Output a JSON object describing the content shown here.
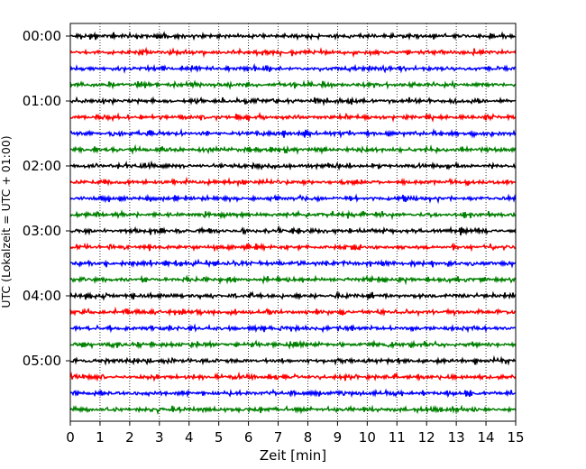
{
  "chart_data": {
    "type": "line",
    "title": "",
    "xlabel": "Zeit  [min]",
    "ylabel": "UTC (Lokalzeit = UTC + 01:00)",
    "xlim": [
      0,
      15
    ],
    "x_ticks": [
      "0",
      "1",
      "2",
      "3",
      "4",
      "5",
      "6",
      "7",
      "8",
      "9",
      "10",
      "11",
      "12",
      "13",
      "14",
      "15"
    ],
    "y_ticks": [
      "00:00",
      "01:00",
      "02:00",
      "03:00",
      "04:00",
      "05:00"
    ],
    "grid": "vertical dotted lines at each minute",
    "legend": "none",
    "trace_minutes": 15,
    "colors": [
      "#000000",
      "#ff0000",
      "#0000ff",
      "#008000"
    ],
    "traces": [
      {
        "start": "00:00",
        "color": "#000000"
      },
      {
        "start": "00:15",
        "color": "#ff0000"
      },
      {
        "start": "00:30",
        "color": "#0000ff"
      },
      {
        "start": "00:45",
        "color": "#008000"
      },
      {
        "start": "01:00",
        "color": "#000000"
      },
      {
        "start": "01:15",
        "color": "#ff0000"
      },
      {
        "start": "01:30",
        "color": "#0000ff"
      },
      {
        "start": "01:45",
        "color": "#008000"
      },
      {
        "start": "02:00",
        "color": "#000000"
      },
      {
        "start": "02:15",
        "color": "#ff0000"
      },
      {
        "start": "02:30",
        "color": "#0000ff"
      },
      {
        "start": "02:45",
        "color": "#008000"
      },
      {
        "start": "03:00",
        "color": "#000000"
      },
      {
        "start": "03:15",
        "color": "#ff0000"
      },
      {
        "start": "03:30",
        "color": "#0000ff"
      },
      {
        "start": "03:45",
        "color": "#008000"
      },
      {
        "start": "04:00",
        "color": "#000000"
      },
      {
        "start": "04:15",
        "color": "#ff0000"
      },
      {
        "start": "04:30",
        "color": "#0000ff"
      },
      {
        "start": "04:45",
        "color": "#008000"
      },
      {
        "start": "05:00",
        "color": "#000000"
      },
      {
        "start": "05:15",
        "color": "#ff0000"
      },
      {
        "start": "05:30",
        "color": "#0000ff"
      },
      {
        "start": "05:45",
        "color": "#008000"
      }
    ]
  }
}
